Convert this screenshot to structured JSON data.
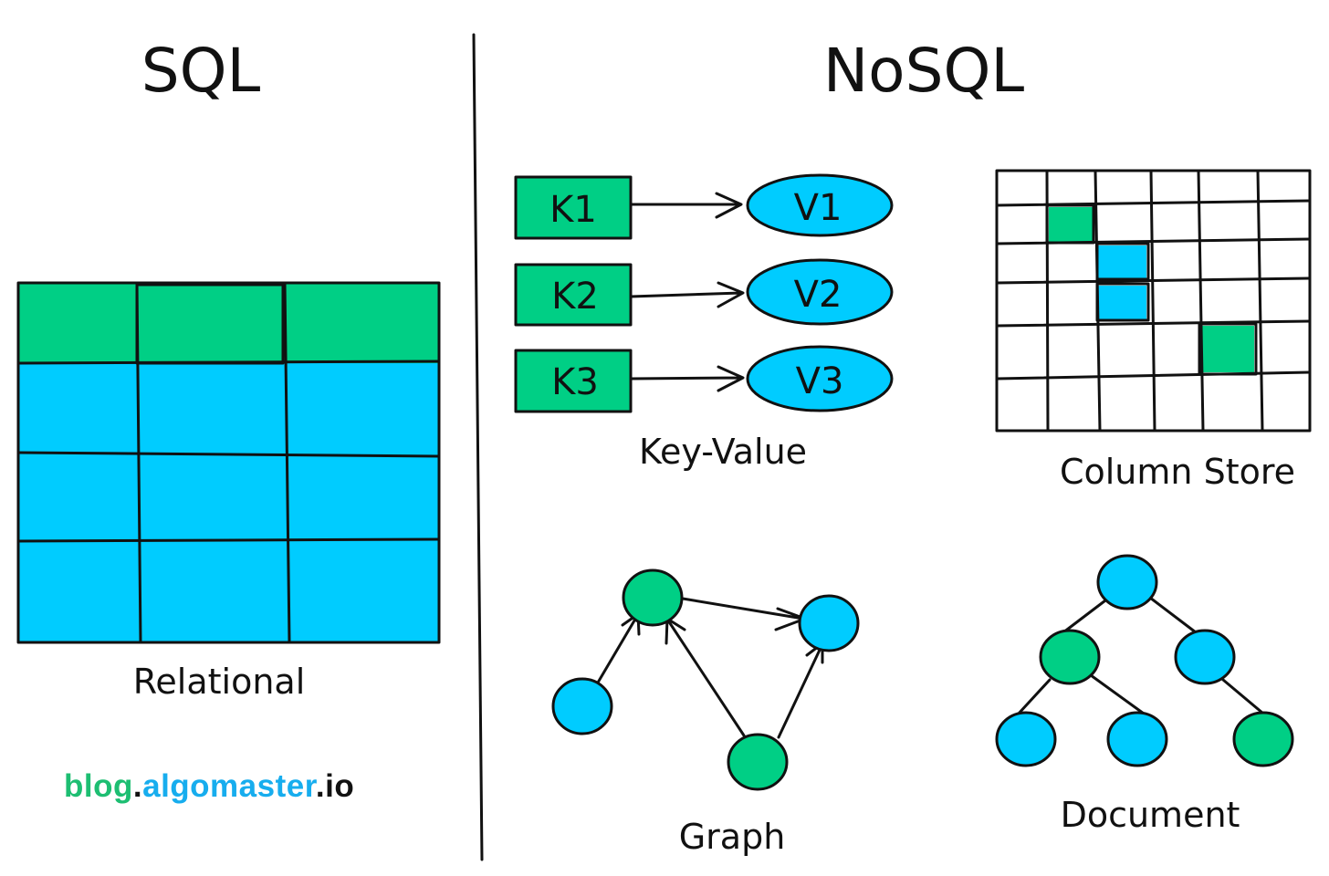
{
  "titles": {
    "sql": "SQL",
    "nosql": "NoSQL"
  },
  "labels": {
    "relational": "Relational",
    "key_value": "Key-Value",
    "column_store": "Column Store",
    "graph": "Graph",
    "document": "Document"
  },
  "key_value": {
    "keys": [
      "K1",
      "K2",
      "K3"
    ],
    "values": [
      "V1",
      "V2",
      "V3"
    ]
  },
  "logo": {
    "part1": "blog",
    "dot1": ".",
    "part2": "algomaster",
    "dot2": ".",
    "part3": "io"
  },
  "colors": {
    "green": "#00CF85",
    "blue": "#00CCFF",
    "logo_green": "#1DBE72",
    "logo_blue": "#17ADEE",
    "ink": "#111111"
  }
}
